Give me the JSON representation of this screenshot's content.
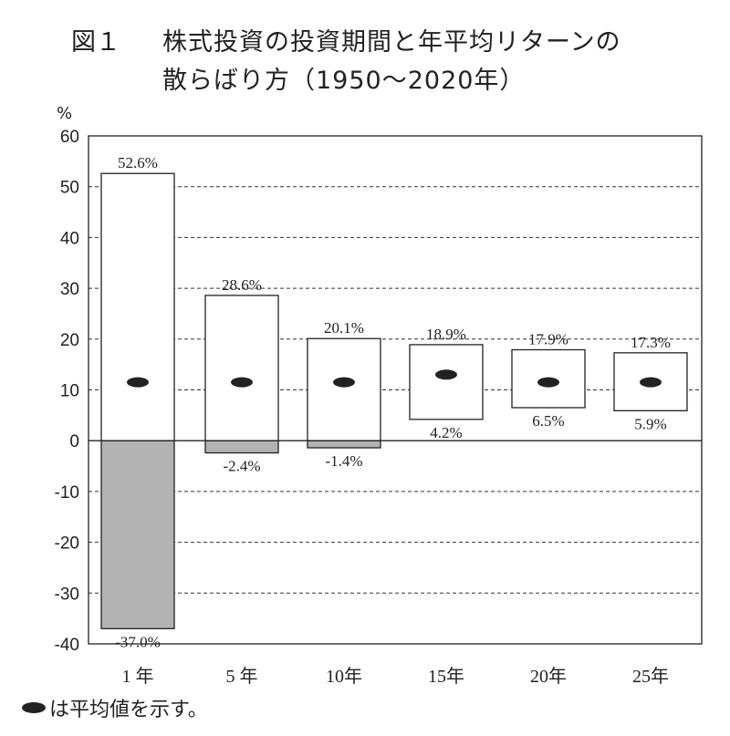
{
  "title": {
    "figure_label": "図１",
    "line1": "株式投資の投資期間と年平均リターンの",
    "line2": "散らばり方（1950～2020年）"
  },
  "unit_label": "%",
  "note": "は平均値を示す。",
  "chart_data": {
    "type": "bar",
    "title": "株式投資の投資期間と年平均リターンの散らばり方（1950～2020年）",
    "ylabel": "%",
    "ylim": [
      -40,
      60
    ],
    "yticks": [
      60,
      50,
      40,
      30,
      20,
      10,
      0,
      -10,
      -20,
      -30,
      -40
    ],
    "grid": true,
    "categories": [
      "1 年",
      "5 年",
      "10年",
      "15年",
      "20年",
      "25年"
    ],
    "series": [
      {
        "max": [
          52.6,
          28.6,
          20.1,
          18.9,
          17.9,
          17.3
        ],
        "min": [
          -37.0,
          -2.4,
          -1.4,
          4.2,
          6.5,
          5.9
        ],
        "mean": [
          11.5,
          11.5,
          11.5,
          13.0,
          11.5,
          11.5
        ]
      }
    ],
    "max_labels": [
      "52.6%",
      "28.6%",
      "20.1%",
      "18.9%",
      "17.9%",
      "17.3%"
    ],
    "min_labels": [
      "-37.0%",
      "-2.4%",
      "-1.4%",
      "4.2%",
      "6.5%",
      "5.9%"
    ],
    "negative_fill": "#b3b3b3",
    "positive_fill": "#ffffff"
  }
}
